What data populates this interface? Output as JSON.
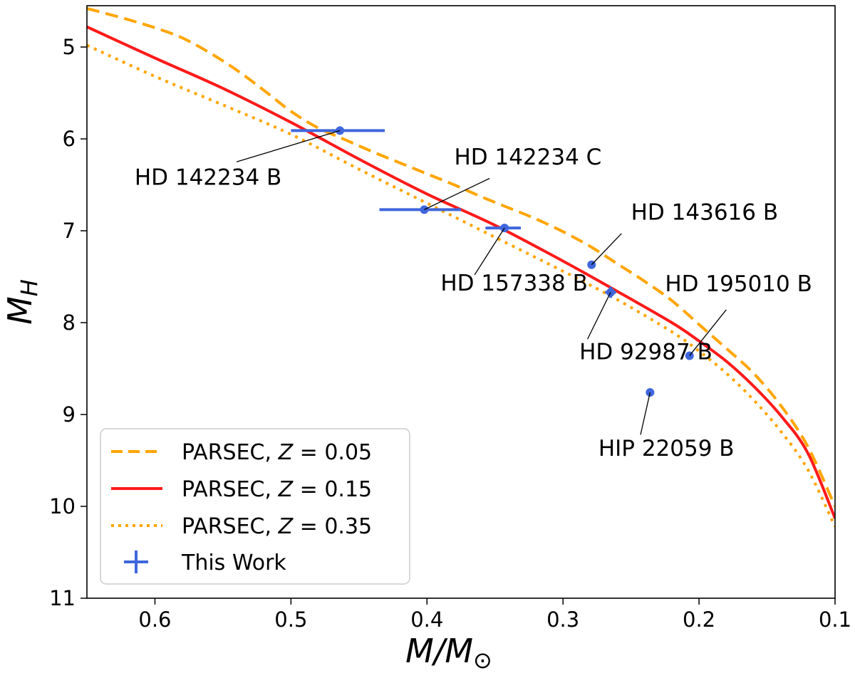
{
  "chart_data": {
    "type": "line",
    "xlabel": {
      "main": "M/M",
      "sub": "⊙"
    },
    "ylabel": {
      "main": "M",
      "sub": "H"
    },
    "xlim": [
      0.65,
      0.1
    ],
    "ylim": [
      11,
      4.55
    ],
    "y_inverted": true,
    "x_inverted": true,
    "xticks": [
      0.6,
      0.5,
      0.4,
      0.3,
      0.2,
      0.1
    ],
    "xtick_labels": [
      "0.6",
      "0.5",
      "0.4",
      "0.3",
      "0.2",
      "0.1"
    ],
    "yticks": [
      5,
      6,
      7,
      8,
      9,
      10,
      11
    ],
    "ytick_labels": [
      "5",
      "6",
      "7",
      "8",
      "9",
      "10",
      "11"
    ],
    "grid": false,
    "legend_position": "lower-left",
    "series": [
      {
        "name": "PARSEC, ",
        "name_z": "Z",
        "name_val": " = 0.05",
        "style": "dashed",
        "color": "#FFA500",
        "x": [
          0.65,
          0.62,
          0.6,
          0.58,
          0.56,
          0.54,
          0.52,
          0.5,
          0.48,
          0.46,
          0.44,
          0.42,
          0.4,
          0.38,
          0.36,
          0.34,
          0.32,
          0.3,
          0.28,
          0.26,
          0.24,
          0.22,
          0.2,
          0.18,
          0.16,
          0.14,
          0.12,
          0.1
        ],
        "y": [
          4.58,
          4.7,
          4.79,
          4.9,
          5.06,
          5.25,
          5.47,
          5.7,
          5.88,
          6.01,
          6.14,
          6.26,
          6.38,
          6.5,
          6.63,
          6.75,
          6.87,
          7.01,
          7.17,
          7.36,
          7.55,
          7.76,
          8.02,
          8.28,
          8.55,
          8.9,
          9.35,
          10.0
        ]
      },
      {
        "name": "PARSEC, ",
        "name_z": "Z",
        "name_val": " = 0.15",
        "style": "solid",
        "color": "#FF1A1A",
        "x": [
          0.65,
          0.6,
          0.55,
          0.5,
          0.45,
          0.4,
          0.35,
          0.3,
          0.26,
          0.22,
          0.2,
          0.18,
          0.16,
          0.14,
          0.12,
          0.1
        ],
        "y": [
          4.78,
          5.12,
          5.45,
          5.82,
          6.22,
          6.6,
          6.94,
          7.33,
          7.66,
          8.0,
          8.2,
          8.42,
          8.69,
          9.01,
          9.42,
          10.13
        ]
      },
      {
        "name": "PARSEC, ",
        "name_z": "Z",
        "name_val": " = 0.35",
        "style": "dotted",
        "color": "#FFA500",
        "x": [
          0.65,
          0.6,
          0.55,
          0.5,
          0.45,
          0.4,
          0.35,
          0.3,
          0.26,
          0.22,
          0.2,
          0.18,
          0.16,
          0.14,
          0.12,
          0.1
        ],
        "y": [
          4.98,
          5.32,
          5.63,
          5.95,
          6.33,
          6.7,
          7.07,
          7.44,
          7.75,
          8.1,
          8.31,
          8.55,
          8.84,
          9.18,
          9.6,
          10.22
        ]
      }
    ],
    "points": {
      "name": "This Work",
      "color": "#3F66DC",
      "data": [
        {
          "label": "HD 142234 B",
          "x": 0.464,
          "y": 5.91,
          "xerr": [
            0.036,
            0.033
          ],
          "label_x": 0.615,
          "label_y": 6.5,
          "anchor": "start",
          "line_to_x": 0.54,
          "line_to_y": 6.25
        },
        {
          "label": "HD 142234 C",
          "x": 0.402,
          "y": 6.77,
          "xerr": [
            0.033,
            0.027
          ],
          "label_x": 0.38,
          "label_y": 6.28,
          "anchor": "start",
          "line_to_x": 0.354,
          "line_to_y": 6.43
        },
        {
          "label": "HD 157338 B",
          "x": 0.343,
          "y": 6.97,
          "xerr": [
            0.014,
            0.012
          ],
          "label_x": 0.39,
          "label_y": 7.65,
          "anchor": "start",
          "line_to_x": 0.365,
          "line_to_y": 7.48
        },
        {
          "label": "HD 143616 B",
          "x": 0.279,
          "y": 7.37,
          "xerr": [
            0.0,
            0.0
          ],
          "label_x": 0.25,
          "label_y": 6.88,
          "anchor": "start",
          "line_to_x": 0.257,
          "line_to_y": 7.03
        },
        {
          "label": "HD 92987 B",
          "x": 0.265,
          "y": 7.67,
          "xerr": [
            0.004,
            0.004
          ],
          "yerr": [
            0.06,
            0.06
          ],
          "label_x": 0.288,
          "label_y": 8.4,
          "anchor": "start",
          "line_to_x": 0.282,
          "line_to_y": 8.18
        },
        {
          "label": "HD 195010 B",
          "x": 0.207,
          "y": 8.36,
          "xerr": [
            0.0,
            0.0
          ],
          "label_x": 0.225,
          "label_y": 7.66,
          "anchor": "start",
          "line_to_x": 0.18,
          "line_to_y": 7.86
        },
        {
          "label": "HIP 22059 B",
          "x": 0.236,
          "y": 8.76,
          "xerr": [
            0.003,
            0.003
          ],
          "label_x": 0.274,
          "label_y": 9.45,
          "anchor": "start",
          "line_to_x": 0.243,
          "line_to_y": 9.22
        }
      ]
    }
  }
}
